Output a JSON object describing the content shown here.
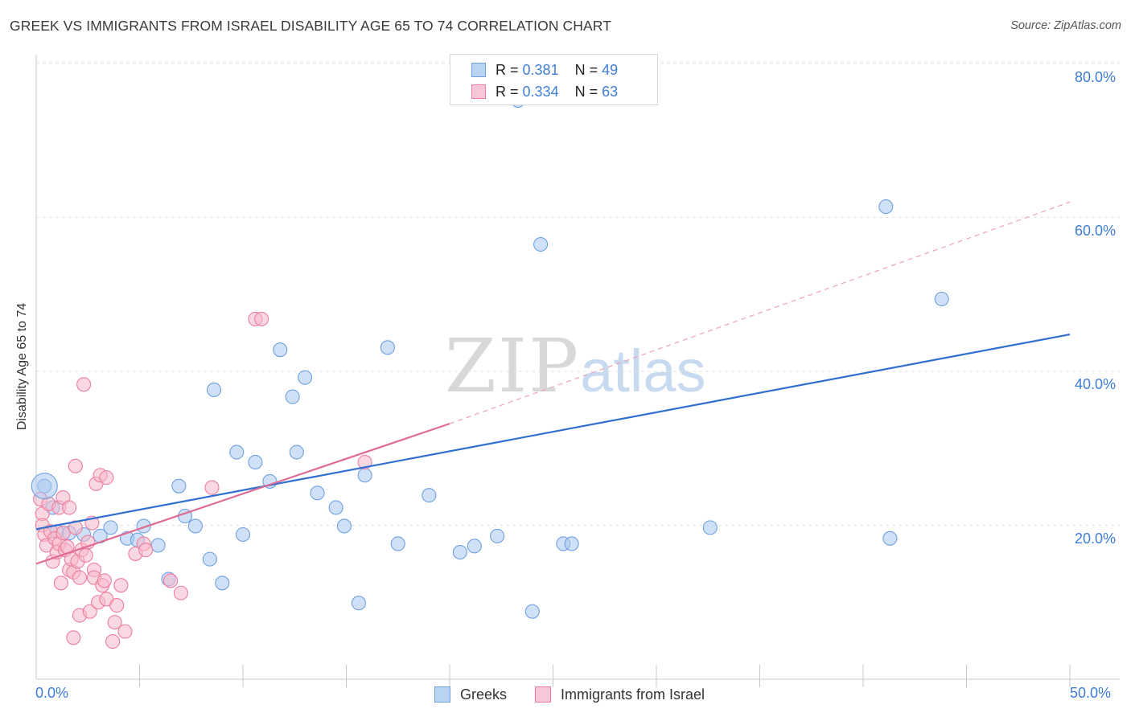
{
  "header": {
    "title": "GREEK VS IMMIGRANTS FROM ISRAEL DISABILITY AGE 65 TO 74 CORRELATION CHART",
    "source": "Source: ZipAtlas.com"
  },
  "watermark": {
    "zip": "ZIP",
    "atlas": "atlas"
  },
  "legend": {
    "rows": [
      {
        "r_label": "R =",
        "r_value": "0.381",
        "n_label": "N =",
        "n_value": "49",
        "color": "#a9c8f0"
      },
      {
        "r_label": "R =",
        "r_value": "0.334",
        "n_label": "N =",
        "n_value": "63",
        "color": "#f5b8cb"
      }
    ]
  },
  "chart_data": {
    "type": "scatter",
    "title": "GREEK VS IMMIGRANTS FROM ISRAEL DISABILITY AGE 65 TO 74 CORRELATION CHART",
    "xlabel": "",
    "ylabel": "Disability Age 65 to 74",
    "xlim": [
      0,
      50
    ],
    "ylim": [
      0,
      80
    ],
    "x_tick_labels": [
      "0.0%",
      "50.0%"
    ],
    "y_tick_labels": [
      "20.0%",
      "40.0%",
      "60.0%",
      "80.0%"
    ],
    "y_ticks": [
      20,
      40,
      60,
      80
    ],
    "grid": true,
    "legend_position": "top-center",
    "series": [
      {
        "name": "Greeks",
        "color": "#6fa0e0",
        "fill": "#a9c8f0",
        "trend": {
          "x0": 0,
          "y0": 19.5,
          "x1": 50,
          "y1": 44.8
        },
        "points": [
          [
            0.4,
            25.1
          ],
          [
            0.8,
            22.3
          ],
          [
            1.0,
            19.2
          ],
          [
            1.6,
            19.0
          ],
          [
            2.3,
            18.8
          ],
          [
            3.1,
            18.6
          ],
          [
            3.6,
            19.7
          ],
          [
            4.4,
            18.3
          ],
          [
            4.9,
            18.1
          ],
          [
            5.2,
            19.9
          ],
          [
            5.9,
            17.4
          ],
          [
            6.4,
            13.0
          ],
          [
            6.9,
            25.1
          ],
          [
            7.2,
            21.2
          ],
          [
            7.7,
            19.9
          ],
          [
            8.4,
            15.6
          ],
          [
            8.6,
            37.6
          ],
          [
            9.0,
            12.5
          ],
          [
            9.7,
            29.5
          ],
          [
            10.0,
            18.8
          ],
          [
            10.6,
            28.2
          ],
          [
            11.3,
            25.7
          ],
          [
            11.8,
            42.8
          ],
          [
            12.4,
            36.7
          ],
          [
            12.6,
            29.5
          ],
          [
            13.0,
            39.2
          ],
          [
            13.6,
            24.2
          ],
          [
            14.5,
            22.3
          ],
          [
            14.9,
            19.9
          ],
          [
            15.6,
            9.9
          ],
          [
            15.9,
            26.5
          ],
          [
            17.0,
            43.1
          ],
          [
            17.5,
            17.6
          ],
          [
            19.0,
            23.9
          ],
          [
            20.5,
            16.5
          ],
          [
            21.2,
            17.3
          ],
          [
            22.3,
            18.6
          ],
          [
            23.3,
            75.2
          ],
          [
            24.0,
            8.8
          ],
          [
            24.4,
            56.5
          ],
          [
            25.5,
            17.6
          ],
          [
            25.9,
            17.6
          ],
          [
            32.6,
            19.7
          ],
          [
            41.1,
            61.4
          ],
          [
            41.3,
            18.3
          ],
          [
            43.8,
            49.4
          ]
        ]
      },
      {
        "name": "Immigrants from Israel",
        "color": "#ec7ea0",
        "fill": "#f5b8cb",
        "trend": {
          "x0": 0,
          "y0": 15.0,
          "x1": 20,
          "y1": 33.2
        },
        "trend_dashed": {
          "x0": 20,
          "y0": 33.2,
          "x1": 50,
          "y1": 62.0
        },
        "points": [
          [
            0.2,
            23.4
          ],
          [
            0.3,
            21.5
          ],
          [
            0.3,
            20.0
          ],
          [
            0.4,
            18.8
          ],
          [
            0.5,
            17.4
          ],
          [
            0.6,
            22.8
          ],
          [
            0.7,
            19.2
          ],
          [
            0.8,
            15.3
          ],
          [
            0.9,
            18.3
          ],
          [
            1.0,
            16.5
          ],
          [
            1.1,
            22.3
          ],
          [
            1.1,
            17.6
          ],
          [
            1.2,
            12.5
          ],
          [
            1.3,
            19.0
          ],
          [
            1.3,
            23.6
          ],
          [
            1.4,
            16.8
          ],
          [
            1.5,
            17.2
          ],
          [
            1.6,
            22.3
          ],
          [
            1.6,
            14.2
          ],
          [
            1.7,
            15.6
          ],
          [
            1.8,
            13.9
          ],
          [
            1.8,
            5.4
          ],
          [
            1.9,
            19.7
          ],
          [
            1.9,
            27.7
          ],
          [
            2.0,
            15.3
          ],
          [
            2.1,
            13.2
          ],
          [
            2.1,
            8.3
          ],
          [
            2.2,
            16.8
          ],
          [
            2.3,
            38.3
          ],
          [
            2.4,
            16.1
          ],
          [
            2.5,
            17.8
          ],
          [
            2.6,
            8.8
          ],
          [
            2.7,
            20.3
          ],
          [
            2.8,
            14.2
          ],
          [
            2.8,
            13.2
          ],
          [
            2.9,
            25.4
          ],
          [
            3.0,
            10.0
          ],
          [
            3.1,
            26.5
          ],
          [
            3.2,
            12.2
          ],
          [
            3.3,
            12.8
          ],
          [
            3.4,
            26.2
          ],
          [
            3.4,
            10.4
          ],
          [
            3.7,
            4.9
          ],
          [
            3.8,
            7.4
          ],
          [
            3.9,
            9.6
          ],
          [
            4.1,
            12.2
          ],
          [
            4.3,
            6.2
          ],
          [
            4.8,
            16.3
          ],
          [
            5.2,
            17.6
          ],
          [
            5.3,
            16.8
          ],
          [
            6.5,
            12.8
          ],
          [
            7.0,
            11.2
          ],
          [
            8.5,
            24.9
          ],
          [
            10.6,
            46.8
          ],
          [
            10.9,
            46.8
          ],
          [
            15.9,
            28.2
          ],
          [
            23.2,
            75.5
          ]
        ]
      }
    ]
  },
  "bottom_legend": [
    {
      "label": "Greeks",
      "color": "#a9c8f0",
      "border": "#6fa0e0"
    },
    {
      "label": "Immigrants from Israel",
      "color": "#f5b8cb",
      "border": "#ec7ea0"
    }
  ]
}
